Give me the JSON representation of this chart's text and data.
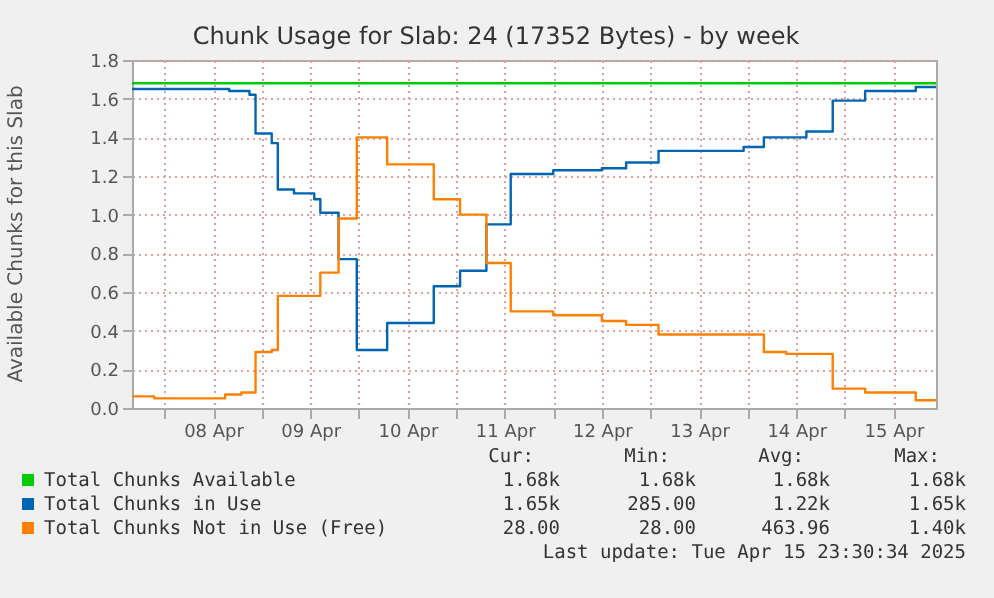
{
  "chart_data": {
    "type": "step",
    "title": "Chunk Usage for Slab: 24 (17352 Bytes) - by week",
    "ylabel": "Available Chunks for this Slab",
    "xlim": [
      "2025-04-07T16:00",
      "2025-04-15T22:30"
    ],
    "xticks": [
      {
        "value": "2025-04-08T00:00",
        "label": null
      },
      {
        "value": "2025-04-08T12:00",
        "label": "08 Apr"
      },
      {
        "value": "2025-04-09T00:00",
        "label": null
      },
      {
        "value": "2025-04-09T12:00",
        "label": "09 Apr"
      },
      {
        "value": "2025-04-10T00:00",
        "label": null
      },
      {
        "value": "2025-04-10T12:00",
        "label": "10 Apr"
      },
      {
        "value": "2025-04-11T00:00",
        "label": null
      },
      {
        "value": "2025-04-11T12:00",
        "label": "11 Apr"
      },
      {
        "value": "2025-04-12T00:00",
        "label": null
      },
      {
        "value": "2025-04-12T12:00",
        "label": "12 Apr"
      },
      {
        "value": "2025-04-13T00:00",
        "label": null
      },
      {
        "value": "2025-04-13T12:00",
        "label": "13 Apr"
      },
      {
        "value": "2025-04-14T00:00",
        "label": null
      },
      {
        "value": "2025-04-14T12:00",
        "label": "14 Apr"
      },
      {
        "value": "2025-04-15T00:00",
        "label": null
      },
      {
        "value": "2025-04-15T12:00",
        "label": "15 Apr"
      }
    ],
    "ylim": [
      0,
      1.8
    ],
    "yticks": [
      {
        "value": 0,
        "label": "0.0"
      },
      {
        "value": 0.2,
        "label": "0.2"
      },
      {
        "value": 0.4,
        "label": "0.4"
      },
      {
        "value": 0.6,
        "label": "0.6"
      },
      {
        "value": 0.8,
        "label": "0.8"
      },
      {
        "value": 1.0,
        "label": "1.0"
      },
      {
        "value": 1.2,
        "label": "1.2"
      },
      {
        "value": 1.4,
        "label": "1.4"
      },
      {
        "value": 1.6,
        "label": "1.6"
      },
      {
        "value": 1.8,
        "label": "1.8"
      }
    ],
    "grid": true,
    "legend": "bottom",
    "line_style": "solid",
    "series": [
      {
        "name": "Total Chunks Available",
        "color": "#00cc00",
        "x": [
          "2025-04-07T16:00",
          "2025-04-15T22:30"
        ],
        "values": [
          1.68,
          1.68
        ]
      },
      {
        "name": "Total Chunks in Use",
        "color": "#0066b3",
        "x": [
          "2025-04-07T16:00",
          "2025-04-08T16:00",
          "2025-04-08T21:00",
          "2025-04-08T22:30",
          "2025-04-09T02:30",
          "2025-04-09T04:00",
          "2025-04-09T08:00",
          "2025-04-09T13:00",
          "2025-04-09T14:30",
          "2025-04-09T19:00",
          "2025-04-09T23:30",
          "2025-04-10T07:00",
          "2025-04-10T18:30",
          "2025-04-11T01:00",
          "2025-04-11T07:30",
          "2025-04-11T13:30",
          "2025-04-12T00:00",
          "2025-04-12T12:00",
          "2025-04-12T18:00",
          "2025-04-13T02:00",
          "2025-04-13T23:00",
          "2025-04-14T04:00",
          "2025-04-14T14:30",
          "2025-04-14T21:00",
          "2025-04-15T05:00",
          "2025-04-15T17:30",
          "2025-04-15T22:30"
        ],
        "values": [
          1.65,
          1.64,
          1.62,
          1.42,
          1.37,
          1.13,
          1.11,
          1.08,
          1.01,
          0.77,
          0.3,
          0.44,
          0.63,
          0.71,
          0.95,
          1.21,
          1.23,
          1.24,
          1.27,
          1.33,
          1.35,
          1.4,
          1.43,
          1.59,
          1.64,
          1.66,
          1.66
        ]
      },
      {
        "name": "Total Chunks Not in Use (Free)",
        "color": "#ff8000",
        "x": [
          "2025-04-07T16:00",
          "2025-04-07T21:30",
          "2025-04-08T15:00",
          "2025-04-08T19:00",
          "2025-04-08T22:30",
          "2025-04-09T02:30",
          "2025-04-09T04:00",
          "2025-04-09T14:30",
          "2025-04-09T19:00",
          "2025-04-09T23:30",
          "2025-04-10T07:00",
          "2025-04-10T18:30",
          "2025-04-11T01:00",
          "2025-04-11T07:30",
          "2025-04-11T13:30",
          "2025-04-12T00:00",
          "2025-04-12T12:00",
          "2025-04-12T18:00",
          "2025-04-13T02:00",
          "2025-04-14T04:00",
          "2025-04-14T09:30",
          "2025-04-14T21:00",
          "2025-04-15T05:00",
          "2025-04-15T17:30",
          "2025-04-15T22:30"
        ],
        "values": [
          0.06,
          0.05,
          0.07,
          0.08,
          0.29,
          0.3,
          0.58,
          0.7,
          0.98,
          1.4,
          1.26,
          1.08,
          1.0,
          0.75,
          0.5,
          0.48,
          0.45,
          0.43,
          0.38,
          0.29,
          0.28,
          0.1,
          0.08,
          0.04,
          0.04
        ]
      }
    ],
    "annotations": [
      "Cur:",
      "Min:",
      "Avg:",
      "Max:",
      "1.68k",
      "1.68k",
      "1.68k",
      "1.68k",
      "1.65k",
      "285.00",
      "1.22k",
      "1.65k",
      "28.00",
      "28.00",
      "463.96",
      "1.40k",
      "Last update: Tue Apr 15 23:30:34 2025"
    ]
  }
}
